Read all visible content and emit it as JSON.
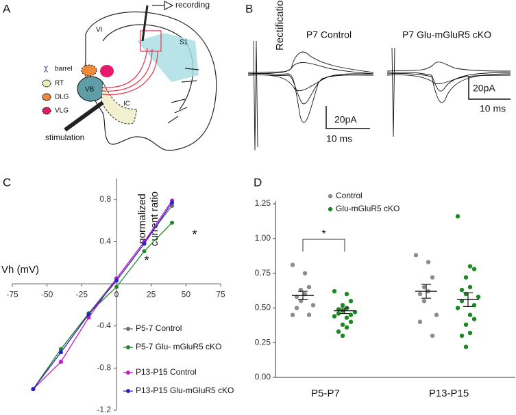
{
  "panel_labels": [
    "A",
    "B",
    "C",
    "D"
  ],
  "diagram": {
    "labels": [
      "recording",
      "S1",
      "VI",
      "barrel",
      "RT",
      "DLG",
      "VLG",
      "VB",
      "IC",
      "stimulation"
    ]
  },
  "traces": {
    "titles": [
      "P7 Control",
      "P7 Glu-mGluR5 cKO"
    ],
    "scale_bars": [
      {
        "amplitude": "20pA",
        "time": "10 ms"
      },
      {
        "amplitude": "20pA",
        "time": "10 ms"
      }
    ]
  },
  "chart_data": [
    {
      "type": "line",
      "xlabel": "Vh (mV)",
      "ylabel": [
        "normalized",
        "current ratio"
      ],
      "x": [
        -60,
        -40,
        -20,
        0,
        20,
        40
      ],
      "series": [
        {
          "name": "P5-7 Control",
          "color": "#6e6e6e",
          "values": [
            -1.0,
            -0.62,
            -0.28,
            0.05,
            0.4,
            0.74
          ]
        },
        {
          "name": "P5-7 Glu- mGluR5 cKO",
          "color": "#23862a",
          "values": [
            -1.0,
            -0.62,
            -0.28,
            -0.03,
            0.31,
            0.58
          ]
        },
        {
          "name": "P13-P15  Control",
          "color": "#c21ac2",
          "values": [
            -1.0,
            -0.74,
            -0.32,
            0.05,
            0.4,
            0.79
          ]
        },
        {
          "name": "P13-P15  Glu-mGluR5 cKO",
          "color": "#2525cc",
          "values": [
            -1.0,
            -0.65,
            -0.29,
            0.03,
            0.38,
            0.77
          ]
        }
      ],
      "xlim": [
        -75,
        75
      ],
      "xticks": [
        -75,
        -50,
        -25,
        0,
        25,
        50,
        75
      ],
      "ylim": [
        -1.2,
        1.0
      ],
      "yticks": [
        0.8,
        0.4,
        -0.4,
        -0.8,
        -1.2
      ],
      "annotations": [
        "*",
        "*"
      ]
    },
    {
      "type": "strip",
      "ylabel": "Rectification index",
      "categories": [
        "P5-P7",
        "P13-P15"
      ],
      "series": [
        {
          "name": "Control",
          "color": "#8c8c8c",
          "values": [
            [
              0.81,
              0.75,
              0.65,
              0.63,
              0.6,
              0.58,
              0.55,
              0.52,
              0.5,
              0.45,
              0.45
            ],
            [
              0.88,
              0.83,
              0.72,
              0.65,
              0.62,
              0.6,
              0.55,
              0.45,
              0.4,
              0.3
            ]
          ],
          "means": [
            0.59,
            0.62
          ],
          "errors": [
            0.03,
            0.05
          ]
        },
        {
          "name": "Glu-mGluR5 cKO",
          "color": "#198a1f",
          "values": [
            [
              0.62,
              0.6,
              0.55,
              0.52,
              0.5,
              0.49,
              0.48,
              0.47,
              0.46,
              0.45,
              0.44,
              0.43,
              0.4,
              0.38,
              0.36,
              0.33,
              0.3
            ],
            [
              1.16,
              0.8,
              0.78,
              0.72,
              0.65,
              0.63,
              0.6,
              0.58,
              0.55,
              0.52,
              0.5,
              0.45,
              0.42,
              0.38,
              0.32,
              0.3,
              0.22
            ]
          ],
          "means": [
            0.48,
            0.56
          ],
          "errors": [
            0.02,
            0.05
          ]
        }
      ],
      "ylim": [
        0,
        1.27
      ],
      "yticks": [
        {
          "value": 0,
          "label": "0.00"
        },
        {
          "value": 0.25,
          "label": "0.25"
        },
        {
          "value": 0.5,
          "label": "0.50"
        },
        {
          "value": 0.75,
          "label": "0.75"
        },
        {
          "value": 1,
          "label": "1.00"
        },
        {
          "value": 1.25,
          "label": "1.25"
        }
      ],
      "annotations": [
        "*"
      ]
    }
  ]
}
